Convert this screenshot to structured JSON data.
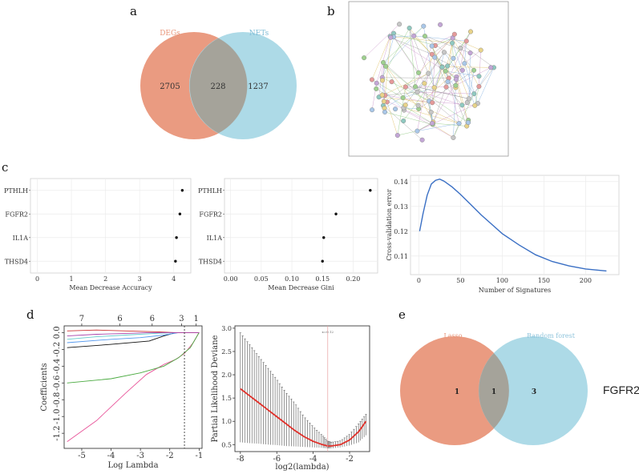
{
  "panels": {
    "a": {
      "letter": "a",
      "left_label": "DEGs",
      "right_label": "NETs",
      "left_only": "2705",
      "overlap": "228",
      "right_only": "1237",
      "left_color": "#e9967a",
      "right_color": "#a9d8e6"
    },
    "b": {
      "letter": "b"
    },
    "c": {
      "letter": "c"
    },
    "d": {
      "letter": "d",
      "vline_label": "x=0.12"
    },
    "e": {
      "letter": "e",
      "left_label": "Lasso",
      "right_label": "Random forest",
      "left_only": "1",
      "overlap": "1",
      "right_only": "3",
      "gene": "FGFR2",
      "left_color": "#e9967a",
      "right_color": "#a9d8e6"
    }
  },
  "chart_data": [
    {
      "id": "c1",
      "type": "scatter",
      "categories": [
        "PTHLH",
        "FGFR2",
        "IL1A",
        "THSD4"
      ],
      "values": [
        4.25,
        4.18,
        4.08,
        4.05
      ],
      "xlabel": "Mean Decrease Accuracy",
      "xlim": [
        -0.2,
        4.5
      ],
      "xticks": [
        0,
        1,
        2,
        3,
        4
      ]
    },
    {
      "id": "c2",
      "type": "scatter",
      "categories": [
        "PTHLH",
        "FGFR2",
        "IL1A",
        "THSD4"
      ],
      "values": [
        0.228,
        0.172,
        0.152,
        0.15
      ],
      "xlabel": "Mean Decrease Gini",
      "xlim": [
        -0.01,
        0.24
      ],
      "xticks": [
        "0.00",
        "0.05",
        "0.10",
        "0.15",
        "0.20"
      ]
    },
    {
      "id": "c3",
      "type": "line",
      "xlabel": "Number of Signatures",
      "ylabel": "Cross-validation error",
      "xlim": [
        -10,
        240
      ],
      "ylim": [
        0.1025,
        0.1425
      ],
      "xticks": [
        0,
        50,
        100,
        150,
        200
      ],
      "yticks": [
        "0.11",
        "0.12",
        "0.13",
        "0.14"
      ],
      "x": [
        1,
        5,
        10,
        15,
        20,
        25,
        30,
        40,
        50,
        60,
        75,
        90,
        100,
        120,
        140,
        160,
        180,
        200,
        215,
        225
      ],
      "y": [
        0.12,
        0.127,
        0.1345,
        0.139,
        0.1405,
        0.141,
        0.1402,
        0.1378,
        0.1348,
        0.1315,
        0.1265,
        0.122,
        0.119,
        0.1145,
        0.1105,
        0.1078,
        0.106,
        0.1048,
        0.1043,
        0.104
      ]
    },
    {
      "id": "d1",
      "type": "line",
      "xlabel": "Log Lambda",
      "ylabel": "Coefficients",
      "top_labels": [
        "7",
        "6",
        "6",
        "3",
        "1"
      ],
      "top_positions": [
        -5,
        -3.7,
        -2.6,
        -1.6,
        -1.1
      ],
      "xlim": [
        -5.6,
        -0.9
      ],
      "ylim": [
        -1.38,
        0.08
      ],
      "xticks": [
        -5,
        -4,
        -3,
        -2,
        -1
      ],
      "yticks": [
        "0.0",
        "-0.2",
        "-0.4",
        "-0.6",
        "-0.8",
        "-1.0",
        "-1.2"
      ],
      "vline": -1.5,
      "series": [
        {
          "name": "s1",
          "color": "#e8559a",
          "x": [
            -5.5,
            -4.5,
            -3.5,
            -2.8,
            -2.2,
            -1.8,
            -1.5,
            -1.2,
            -1
          ],
          "y": [
            -1.3,
            -1.05,
            -0.72,
            -0.5,
            -0.38,
            -0.32,
            -0.25,
            -0.12,
            0
          ]
        },
        {
          "name": "s2",
          "color": "#4aaa40",
          "x": [
            -5.5,
            -4,
            -3,
            -2.2,
            -1.7,
            -1.3,
            -1
          ],
          "y": [
            -0.6,
            -0.55,
            -0.48,
            -0.4,
            -0.3,
            -0.18,
            0
          ]
        },
        {
          "name": "s3",
          "color": "#111111",
          "x": [
            -5.5,
            -4,
            -2.7,
            -2.2,
            -1.8,
            -1.4,
            -1
          ],
          "y": [
            -0.18,
            -0.14,
            -0.1,
            -0.04,
            0,
            0,
            0
          ]
        },
        {
          "name": "s4",
          "color": "#5599ee",
          "x": [
            -5.5,
            -4,
            -3,
            -2.2,
            -1.7,
            -1
          ],
          "y": [
            -0.12,
            -0.08,
            -0.06,
            -0.03,
            0,
            0
          ]
        },
        {
          "name": "s5",
          "color": "#66cccc",
          "x": [
            -5.5,
            -4.5,
            -3.5,
            -2.5,
            -1.8,
            -1
          ],
          "y": [
            -0.08,
            -0.05,
            -0.03,
            -0.01,
            0,
            0
          ]
        },
        {
          "name": "s6",
          "color": "#cc3333",
          "x": [
            -5.5,
            -4.5,
            -3.5,
            -2.5,
            -1.8,
            -1
          ],
          "y": [
            0.02,
            0.03,
            0.02,
            0.01,
            0,
            0
          ]
        },
        {
          "name": "s7",
          "color": "#aa44aa",
          "x": [
            -5.5,
            -4.5,
            -3.5,
            -2.7,
            -2.0,
            -1
          ],
          "y": [
            -0.04,
            -0.02,
            -0.01,
            0,
            0,
            0
          ]
        }
      ]
    },
    {
      "id": "d2",
      "type": "line",
      "xlabel": "log2(lambda)",
      "ylabel": "Partial Likelihood Deviane",
      "xlim": [
        -8.3,
        -0.9
      ],
      "ylim": [
        0.35,
        3.05
      ],
      "xticks": [
        -8,
        -6,
        -4,
        -2
      ],
      "yticks": [
        "0.5",
        "1.0",
        "1.5",
        "2.0",
        "2.5",
        "3.0"
      ],
      "vline": -3.2,
      "x": [
        -8,
        -7.5,
        -7,
        -6.5,
        -6,
        -5.5,
        -5,
        -4.5,
        -4,
        -3.5,
        -3.2,
        -3,
        -2.5,
        -2,
        -1.5,
        -1.1
      ],
      "y": [
        1.7,
        1.55,
        1.4,
        1.25,
        1.1,
        0.95,
        0.8,
        0.67,
        0.57,
        0.5,
        0.47,
        0.47,
        0.5,
        0.6,
        0.78,
        1.0
      ],
      "lo": [
        0.55,
        0.53,
        0.52,
        0.5,
        0.49,
        0.47,
        0.46,
        0.45,
        0.44,
        0.43,
        0.42,
        0.42,
        0.44,
        0.48,
        0.55,
        0.7
      ],
      "hi": [
        2.9,
        2.65,
        2.4,
        2.15,
        1.9,
        1.62,
        1.38,
        1.1,
        0.88,
        0.7,
        0.57,
        0.55,
        0.58,
        0.72,
        0.95,
        1.15
      ]
    }
  ]
}
